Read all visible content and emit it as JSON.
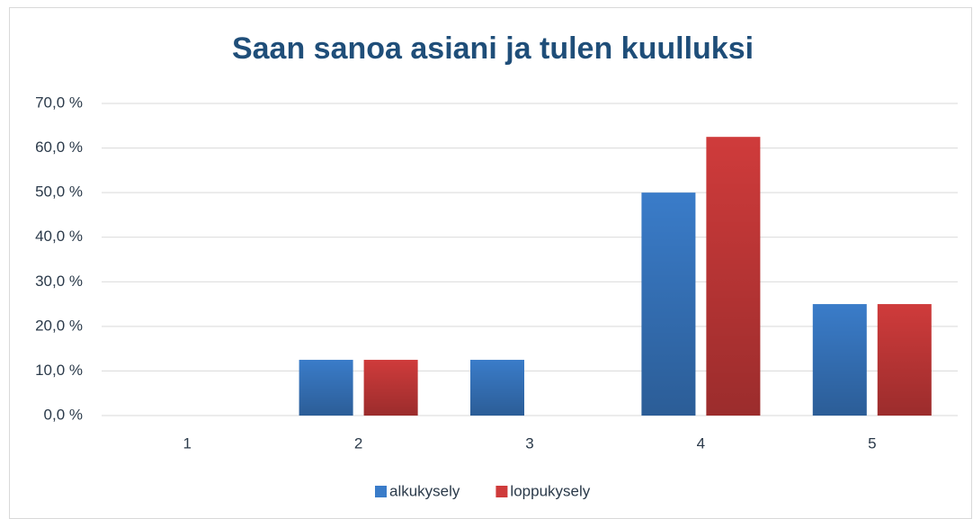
{
  "chart_data": {
    "type": "bar",
    "title": "Saan sanoa asiani ja tulen kuulluksi",
    "categories": [
      "1",
      "2",
      "3",
      "4",
      "5"
    ],
    "series": [
      {
        "name": "alkukysely",
        "color": "#3a7cc9",
        "values": [
          0,
          12.5,
          12.5,
          50,
          25
        ]
      },
      {
        "name": "loppukysely",
        "color": "#cf3b3b",
        "values": [
          0,
          12.5,
          0,
          62.5,
          25
        ]
      }
    ],
    "ylim": [
      0,
      70
    ],
    "yticks": [
      {
        "value": 0,
        "label": "0,0 %"
      },
      {
        "value": 10,
        "label": "10,0 %"
      },
      {
        "value": 20,
        "label": "20,0 %"
      },
      {
        "value": 30,
        "label": "30,0 %"
      },
      {
        "value": 40,
        "label": "40,0 %"
      },
      {
        "value": 50,
        "label": "50,0 %"
      },
      {
        "value": 60,
        "label": "60,0 %"
      },
      {
        "value": 70,
        "label": "70,0 %"
      }
    ],
    "grid": true,
    "legend": "bottom"
  }
}
